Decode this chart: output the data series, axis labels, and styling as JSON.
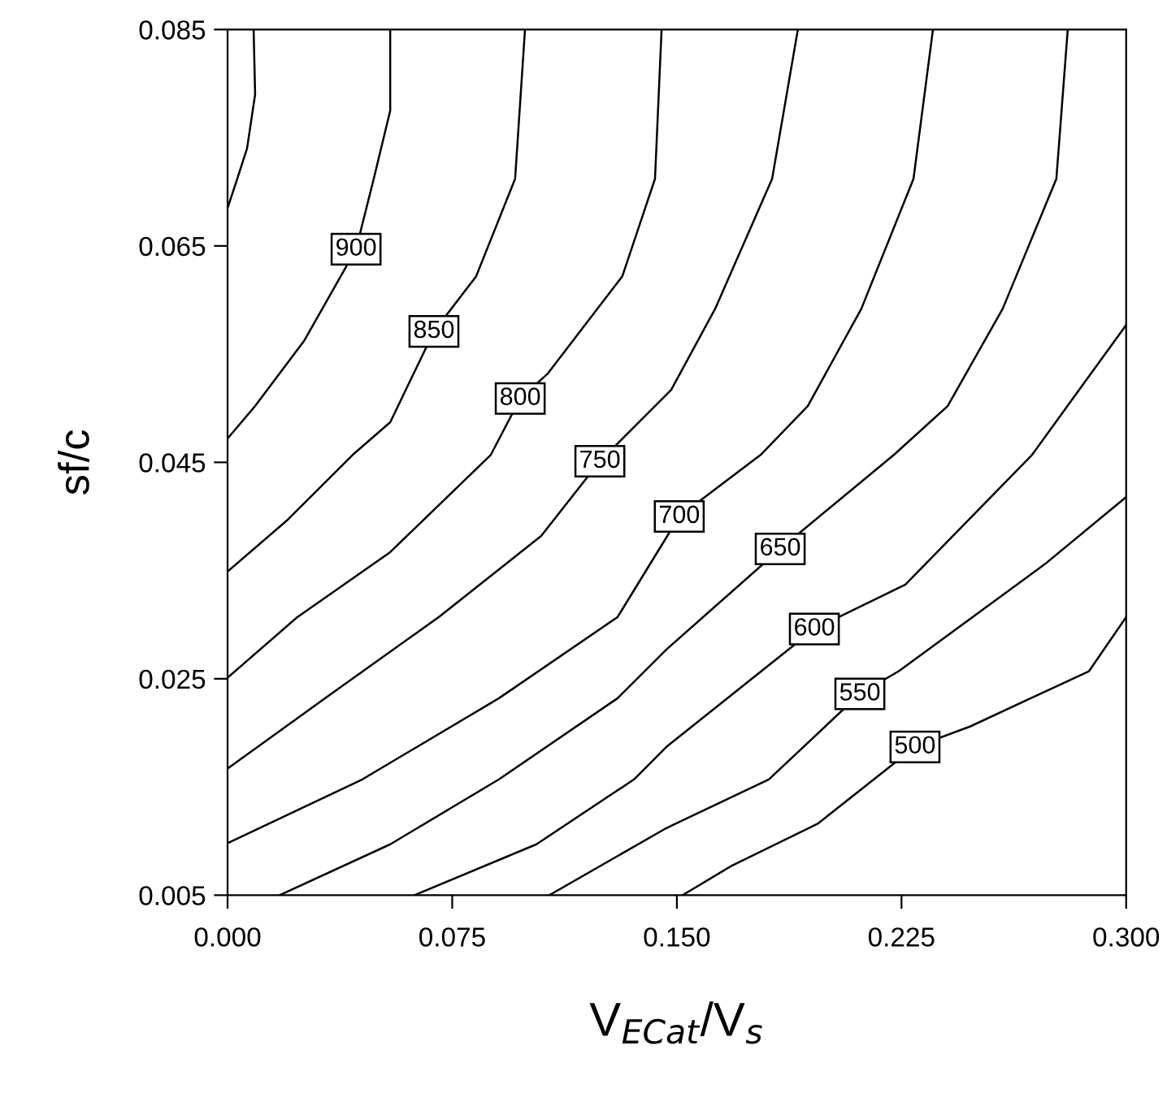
{
  "chart_data": {
    "type": "line",
    "xlabel": "V$_{ECat}$/V$_{s}$",
    "ylabel": "sf/c",
    "xlim": [
      0,
      0.3
    ],
    "ylim": [
      0.005,
      0.085
    ],
    "xticks": [
      {
        "value": 0,
        "label": "0.000"
      },
      {
        "value": 0.075,
        "label": "0.075"
      },
      {
        "value": 0.15,
        "label": "0.150"
      },
      {
        "value": 0.225,
        "label": "0.225"
      },
      {
        "value": 0.3,
        "label": "0.300"
      }
    ],
    "yticks": [
      0.005,
      0.025,
      0.045,
      0.065,
      0.085
    ],
    "grid": false,
    "marker": "none",
    "line_style": "solid",
    "series": [
      {
        "color": "#000000",
        "x": [
          0.0087,
          0.0092,
          0.0065,
          0.003,
          0
        ],
        "values": [
          0.085,
          0.079,
          0.074,
          0.071,
          0.0685
        ]
      },
      {
        "color": "#000000",
        "x": [
          0.0543,
          0.0543,
          0.0488,
          0.0429,
          0.0255,
          0.0092,
          0
        ],
        "values": [
          0.085,
          0.0775,
          0.0712,
          0.0647,
          0.0562,
          0.0502,
          0.0472
        ]
      },
      {
        "color": "#000000",
        "x": [
          0.0993,
          0.096,
          0.083,
          0.0689,
          0.0543,
          0.0418,
          0.0201,
          0
        ],
        "values": [
          0.085,
          0.0712,
          0.0622,
          0.0571,
          0.0487,
          0.0457,
          0.0397,
          0.0349
        ]
      },
      {
        "color": "#000000",
        "x": [
          0.1449,
          0.1427,
          0.1318,
          0.1069,
          0.0977,
          0.0879,
          0.0543,
          0.0233,
          0
        ],
        "values": [
          0.085,
          0.0712,
          0.0622,
          0.0532,
          0.0509,
          0.0457,
          0.0367,
          0.0307,
          0.0251
        ]
      },
      {
        "color": "#000000",
        "x": [
          0.1904,
          0.1818,
          0.1628,
          0.1481,
          0.1243,
          0.1047,
          0.0705,
          0.0326,
          0
        ],
        "values": [
          0.085,
          0.0712,
          0.0592,
          0.0517,
          0.0451,
          0.0382,
          0.0307,
          0.0232,
          0.0167
        ]
      },
      {
        "color": "#000000",
        "x": [
          0.2355,
          0.229,
          0.2116,
          0.1937,
          0.178,
          0.1508,
          0.1302,
          0.0906,
          0.045,
          0
        ],
        "values": [
          0.085,
          0.0712,
          0.0592,
          0.0502,
          0.0457,
          0.04,
          0.0307,
          0.0232,
          0.0157,
          0.0098
        ]
      },
      {
        "color": "#000000",
        "x": [
          0.2805,
          0.2767,
          0.2588,
          0.2404,
          0.2225,
          0.1845,
          0.1465,
          0.1302,
          0.0906,
          0.0543,
          0.0174
        ],
        "values": [
          0.085,
          0.0712,
          0.0592,
          0.0502,
          0.0457,
          0.037,
          0.0277,
          0.0232,
          0.0157,
          0.0097,
          0.005
        ]
      },
      {
        "color": "#000000",
        "x": [
          0.3,
          0.2686,
          0.2263,
          0.1959,
          0.1465,
          0.1357,
          0.1031,
          0.0624
        ],
        "values": [
          0.0577,
          0.0457,
          0.0337,
          0.0296,
          0.0187,
          0.0157,
          0.0097,
          0.005
        ]
      },
      {
        "color": "#000000",
        "x": [
          0.3,
          0.2729,
          0.2241,
          0.2111,
          0.1807,
          0.1465,
          0.1074
        ],
        "values": [
          0.0418,
          0.0356,
          0.0257,
          0.0236,
          0.0157,
          0.0112,
          0.005
        ]
      },
      {
        "color": "#000000",
        "x": [
          0.3,
          0.2876,
          0.248,
          0.2295,
          0.197,
          0.1682,
          0.1519
        ],
        "values": [
          0.0307,
          0.0257,
          0.0206,
          0.0187,
          0.0116,
          0.0077,
          0.005
        ]
      }
    ],
    "annotations": [
      {
        "text": "900",
        "x": 0.0429,
        "y": 0.0647
      },
      {
        "text": "850",
        "x": 0.0689,
        "y": 0.0571
      },
      {
        "text": "800",
        "x": 0.0977,
        "y": 0.0509
      },
      {
        "text": "750",
        "x": 0.1243,
        "y": 0.0451
      },
      {
        "text": "700",
        "x": 0.1508,
        "y": 0.04
      },
      {
        "text": "650",
        "x": 0.1845,
        "y": 0.037
      },
      {
        "text": "600",
        "x": 0.1959,
        "y": 0.0296
      },
      {
        "text": "550",
        "x": 0.2111,
        "y": 0.0236
      },
      {
        "text": "500",
        "x": 0.2295,
        "y": 0.0187
      }
    ]
  }
}
